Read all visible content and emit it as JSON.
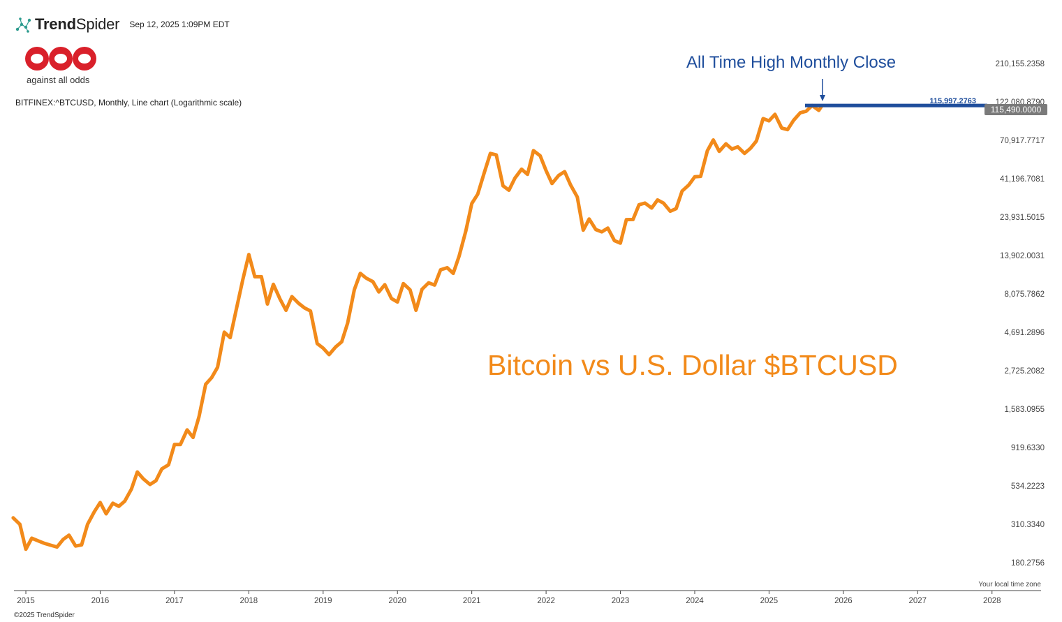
{
  "header": {
    "brand_bold": "Trend",
    "brand_light": "Spider",
    "timestamp": "Sep 12, 2025 1:09PM EDT",
    "logo_icon": "trendspider-node-icon"
  },
  "branding": {
    "aao_logo": "aao",
    "aao_tagline": "against all odds",
    "aao_color": "#d9202a",
    "copyright": "©2025 TrendSpider"
  },
  "colors": {
    "line": "#f28a1a",
    "ath_line": "#1f4e9c",
    "price_tag": "#7a7a7a"
  },
  "chart_data": {
    "type": "line",
    "instrument": "BITFINEX:^BTCUSD, Monthly, Line chart (Logarithmic scale)",
    "scale": "log",
    "title": "Bitcoin vs U.S. Dollar $BTCUSD",
    "annotation": "All Time High Monthly Close",
    "ath_value_label": "115,997.2763",
    "ath_value": 115997.2763,
    "current_price_label": "115,490.0000",
    "current_price": 115490,
    "timezone_note": "Your local time zone",
    "ylim": [
      130,
      300000
    ],
    "y_ticks": [
      {
        "value": 210155.2358,
        "label": "210,155.2358"
      },
      {
        "value": 122080.879,
        "label": "122,080.8790"
      },
      {
        "value": 70917.7717,
        "label": "70,917.7717"
      },
      {
        "value": 41196.7081,
        "label": "41,196.7081"
      },
      {
        "value": 23931.5015,
        "label": "23,931.5015"
      },
      {
        "value": 13902.0031,
        "label": "13,902.0031"
      },
      {
        "value": 8075.7862,
        "label": "8,075.7862"
      },
      {
        "value": 4691.2896,
        "label": "4,691.2896"
      },
      {
        "value": 2725.2082,
        "label": "2,725.2082"
      },
      {
        "value": 1583.0955,
        "label": "1,583.0955"
      },
      {
        "value": 919.633,
        "label": "919.6330"
      },
      {
        "value": 534.2223,
        "label": "534.2223"
      },
      {
        "value": 310.334,
        "label": "310.3340"
      },
      {
        "value": 180.2756,
        "label": "180.2756"
      }
    ],
    "x_ticks": [
      "2015",
      "2016",
      "2017",
      "2018",
      "2019",
      "2020",
      "2021",
      "2022",
      "2023",
      "2024",
      "2025",
      "2026",
      "2027",
      "2028"
    ],
    "x_start": 2014.84,
    "x_end": 2028.66,
    "series": [
      {
        "name": "BTCUSD Monthly Close",
        "points": [
          [
            2014.83,
            340
          ],
          [
            2014.92,
            310
          ],
          [
            2015.0,
            218
          ],
          [
            2015.08,
            255
          ],
          [
            2015.17,
            245
          ],
          [
            2015.25,
            237
          ],
          [
            2015.33,
            231
          ],
          [
            2015.42,
            225
          ],
          [
            2015.5,
            250
          ],
          [
            2015.58,
            266
          ],
          [
            2015.67,
            228
          ],
          [
            2015.75,
            232
          ],
          [
            2015.83,
            310
          ],
          [
            2015.92,
            370
          ],
          [
            2016.0,
            422
          ],
          [
            2016.08,
            360
          ],
          [
            2016.17,
            418
          ],
          [
            2016.25,
            400
          ],
          [
            2016.33,
            430
          ],
          [
            2016.42,
            510
          ],
          [
            2016.5,
            650
          ],
          [
            2016.58,
            590
          ],
          [
            2016.67,
            545
          ],
          [
            2016.75,
            575
          ],
          [
            2016.83,
            680
          ],
          [
            2016.92,
            720
          ],
          [
            2017.0,
            960
          ],
          [
            2017.08,
            960
          ],
          [
            2017.17,
            1180
          ],
          [
            2017.25,
            1060
          ],
          [
            2017.33,
            1420
          ],
          [
            2017.42,
            2250
          ],
          [
            2017.5,
            2470
          ],
          [
            2017.58,
            2860
          ],
          [
            2017.67,
            4700
          ],
          [
            2017.75,
            4350
          ],
          [
            2017.83,
            6450
          ],
          [
            2017.92,
            9900
          ],
          [
            2018.0,
            14100
          ],
          [
            2018.08,
            10300
          ],
          [
            2018.17,
            10300
          ],
          [
            2018.25,
            7000
          ],
          [
            2018.33,
            9250
          ],
          [
            2018.42,
            7500
          ],
          [
            2018.5,
            6400
          ],
          [
            2018.58,
            7770
          ],
          [
            2018.67,
            7070
          ],
          [
            2018.75,
            6620
          ],
          [
            2018.83,
            6340
          ],
          [
            2018.92,
            4000
          ],
          [
            2019.0,
            3750
          ],
          [
            2019.08,
            3420
          ],
          [
            2019.17,
            3820
          ],
          [
            2019.25,
            4100
          ],
          [
            2019.33,
            5350
          ],
          [
            2019.42,
            8580
          ],
          [
            2019.5,
            10800
          ],
          [
            2019.58,
            10100
          ],
          [
            2019.67,
            9600
          ],
          [
            2019.75,
            8300
          ],
          [
            2019.83,
            9200
          ],
          [
            2019.92,
            7560
          ],
          [
            2020.0,
            7200
          ],
          [
            2020.08,
            9350
          ],
          [
            2020.17,
            8550
          ],
          [
            2020.25,
            6400
          ],
          [
            2020.33,
            8620
          ],
          [
            2020.42,
            9450
          ],
          [
            2020.5,
            9150
          ],
          [
            2020.58,
            11350
          ],
          [
            2020.67,
            11700
          ],
          [
            2020.75,
            10800
          ],
          [
            2020.83,
            13800
          ],
          [
            2020.92,
            19700
          ],
          [
            2021.0,
            29000
          ],
          [
            2021.08,
            33100
          ],
          [
            2021.17,
            45200
          ],
          [
            2021.25,
            58900
          ],
          [
            2021.33,
            57700
          ],
          [
            2021.42,
            37300
          ],
          [
            2021.5,
            35000
          ],
          [
            2021.58,
            41500
          ],
          [
            2021.67,
            47100
          ],
          [
            2021.75,
            43800
          ],
          [
            2021.83,
            61300
          ],
          [
            2021.92,
            57000
          ],
          [
            2022.0,
            46200
          ],
          [
            2022.08,
            38500
          ],
          [
            2022.17,
            43200
          ],
          [
            2022.25,
            45500
          ],
          [
            2022.33,
            37700
          ],
          [
            2022.42,
            31800
          ],
          [
            2022.5,
            19900
          ],
          [
            2022.58,
            23300
          ],
          [
            2022.67,
            20050
          ],
          [
            2022.75,
            19430
          ],
          [
            2022.83,
            20500
          ],
          [
            2022.92,
            17150
          ],
          [
            2023.0,
            16550
          ],
          [
            2023.08,
            23100
          ],
          [
            2023.17,
            23150
          ],
          [
            2023.25,
            28500
          ],
          [
            2023.33,
            29200
          ],
          [
            2023.42,
            27200
          ],
          [
            2023.5,
            30500
          ],
          [
            2023.58,
            29200
          ],
          [
            2023.67,
            26000
          ],
          [
            2023.75,
            27000
          ],
          [
            2023.83,
            34600
          ],
          [
            2023.92,
            37700
          ],
          [
            2024.0,
            42300
          ],
          [
            2024.08,
            42600
          ],
          [
            2024.17,
            61200
          ],
          [
            2024.25,
            71300
          ],
          [
            2024.33,
            60700
          ],
          [
            2024.42,
            67500
          ],
          [
            2024.5,
            62700
          ],
          [
            2024.58,
            64600
          ],
          [
            2024.67,
            58950
          ],
          [
            2024.75,
            63300
          ],
          [
            2024.83,
            70200
          ],
          [
            2024.92,
            96400
          ],
          [
            2025.0,
            93400
          ],
          [
            2025.08,
            102400
          ],
          [
            2025.17,
            84400
          ],
          [
            2025.25,
            82500
          ],
          [
            2025.33,
            94200
          ],
          [
            2025.42,
            104600
          ],
          [
            2025.5,
            107100
          ],
          [
            2025.58,
            115998
          ],
          [
            2025.67,
            108300
          ],
          [
            2025.71,
            115490
          ]
        ]
      }
    ]
  }
}
